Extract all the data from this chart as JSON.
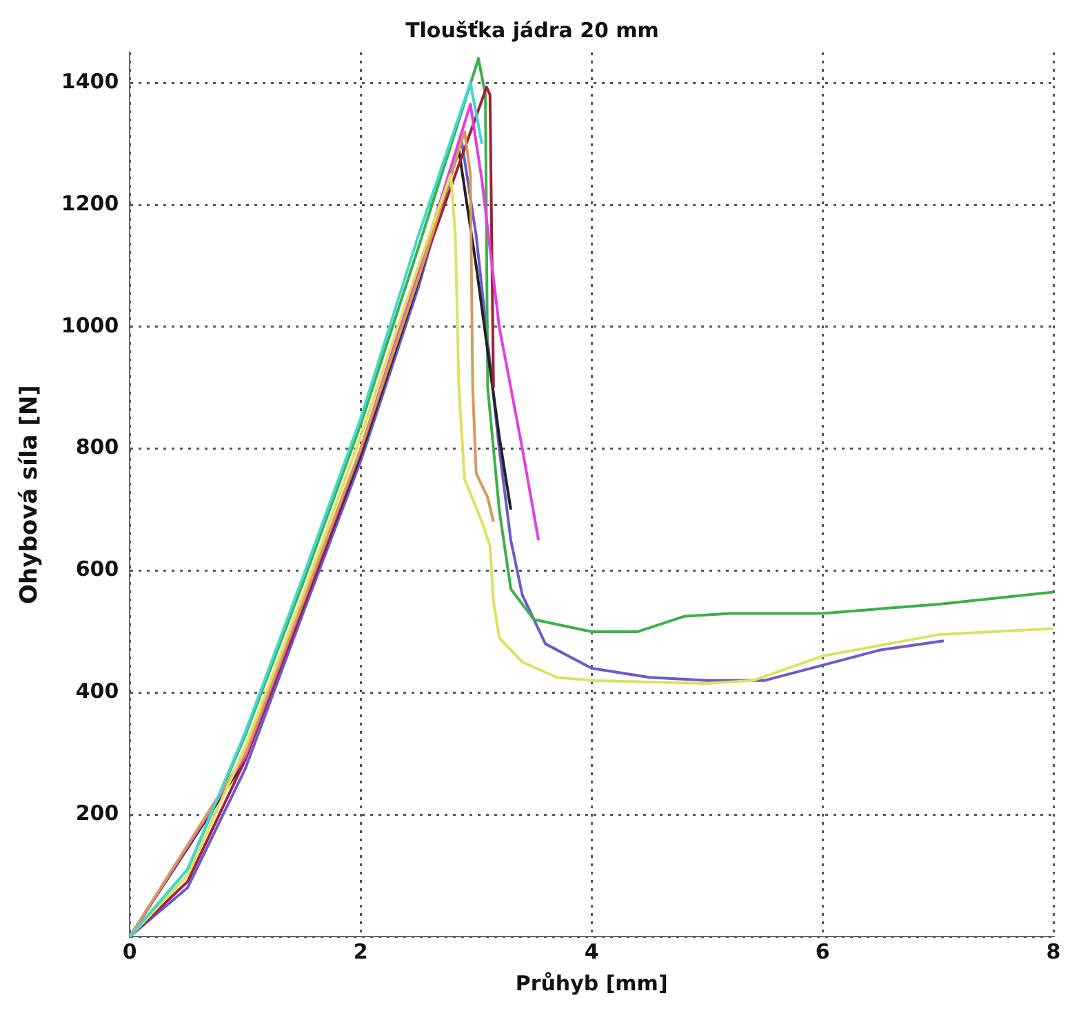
{
  "chart_data": {
    "type": "line",
    "title": "Tloušťka jádra 20 mm",
    "xlabel": "Průhyb [mm]",
    "ylabel": "Ohybová síla [N]",
    "xlim": [
      0,
      8
    ],
    "xticks": [
      0,
      2,
      4,
      6,
      8
    ],
    "ylim": [
      0,
      1450
    ],
    "yticks": [
      {
        "value": 0,
        "label": null
      },
      200,
      400,
      600,
      800,
      1000,
      1200,
      1400
    ],
    "grid": true,
    "legend": false,
    "marker": "none",
    "line_style": "solid",
    "series": [
      {
        "color": "#3fd9d0",
        "x": [
          0,
          0.5,
          1,
          1.5,
          2,
          2.5,
          2.95,
          3.05
        ],
        "values": [
          0,
          110,
          335,
          590,
          850,
          1150,
          1400,
          1300
        ]
      },
      {
        "color": "#e0e060",
        "x": [
          0,
          0.5,
          1,
          1.5,
          2,
          2.5,
          2.78,
          2.82,
          2.85,
          2.9,
          3.05,
          3.12,
          3.15,
          3.2,
          3.4,
          3.7,
          4,
          5,
          5.4,
          6,
          7,
          8
        ],
        "values": [
          0,
          100,
          310,
          560,
          820,
          1100,
          1250,
          1150,
          900,
          750,
          680,
          640,
          550,
          490,
          450,
          425,
          420,
          415,
          420,
          460,
          495,
          505
        ]
      },
      {
        "color": "#d69a5a",
        "x": [
          0,
          1,
          2,
          2.5,
          2.9,
          2.95,
          2.97,
          3,
          3.1,
          3.15
        ],
        "values": [
          0,
          300,
          800,
          1080,
          1320,
          1250,
          900,
          760,
          720,
          680
        ]
      },
      {
        "color": "#e040e0",
        "x": [
          0,
          1,
          2,
          2.5,
          2.95,
          3.05,
          3.2,
          3.4,
          3.54
        ],
        "values": [
          0,
          295,
          800,
          1090,
          1365,
          1240,
          1000,
          800,
          650
        ]
      },
      {
        "color": "#a0203a",
        "x": [
          0,
          0.5,
          1,
          1.5,
          2,
          2.5,
          3.09,
          3.12,
          3.15
        ],
        "values": [
          0,
          90,
          290,
          540,
          795,
          1080,
          1393,
          1380,
          900
        ]
      },
      {
        "color": "#222222",
        "x": [
          0,
          1,
          2,
          2.5,
          2.85,
          3,
          3.2,
          3.3
        ],
        "values": [
          0,
          290,
          790,
          1075,
          1290,
          1100,
          820,
          700
        ]
      },
      {
        "color": "#3cb04a",
        "x": [
          0,
          0.5,
          1,
          1.5,
          2,
          2.5,
          3.02,
          3.08,
          3.1,
          3.2,
          3.3,
          3.5,
          4,
          4.4,
          4.8,
          5.2,
          6,
          7,
          8
        ],
        "values": [
          0,
          110,
          330,
          580,
          840,
          1130,
          1440,
          1380,
          900,
          700,
          570,
          520,
          500,
          500,
          525,
          530,
          530,
          545,
          565
        ]
      },
      {
        "color": "#6a5acd",
        "x": [
          0,
          0.5,
          1,
          1.5,
          2,
          2.5,
          2.87,
          3,
          3.2,
          3.3,
          3.4,
          3.6,
          4,
          4.5,
          5,
          5.5,
          6,
          6.5,
          7.05
        ],
        "values": [
          0,
          80,
          275,
          530,
          780,
          1065,
          1310,
          1150,
          800,
          650,
          560,
          480,
          440,
          425,
          420,
          420,
          445,
          470,
          485
        ]
      }
    ]
  }
}
